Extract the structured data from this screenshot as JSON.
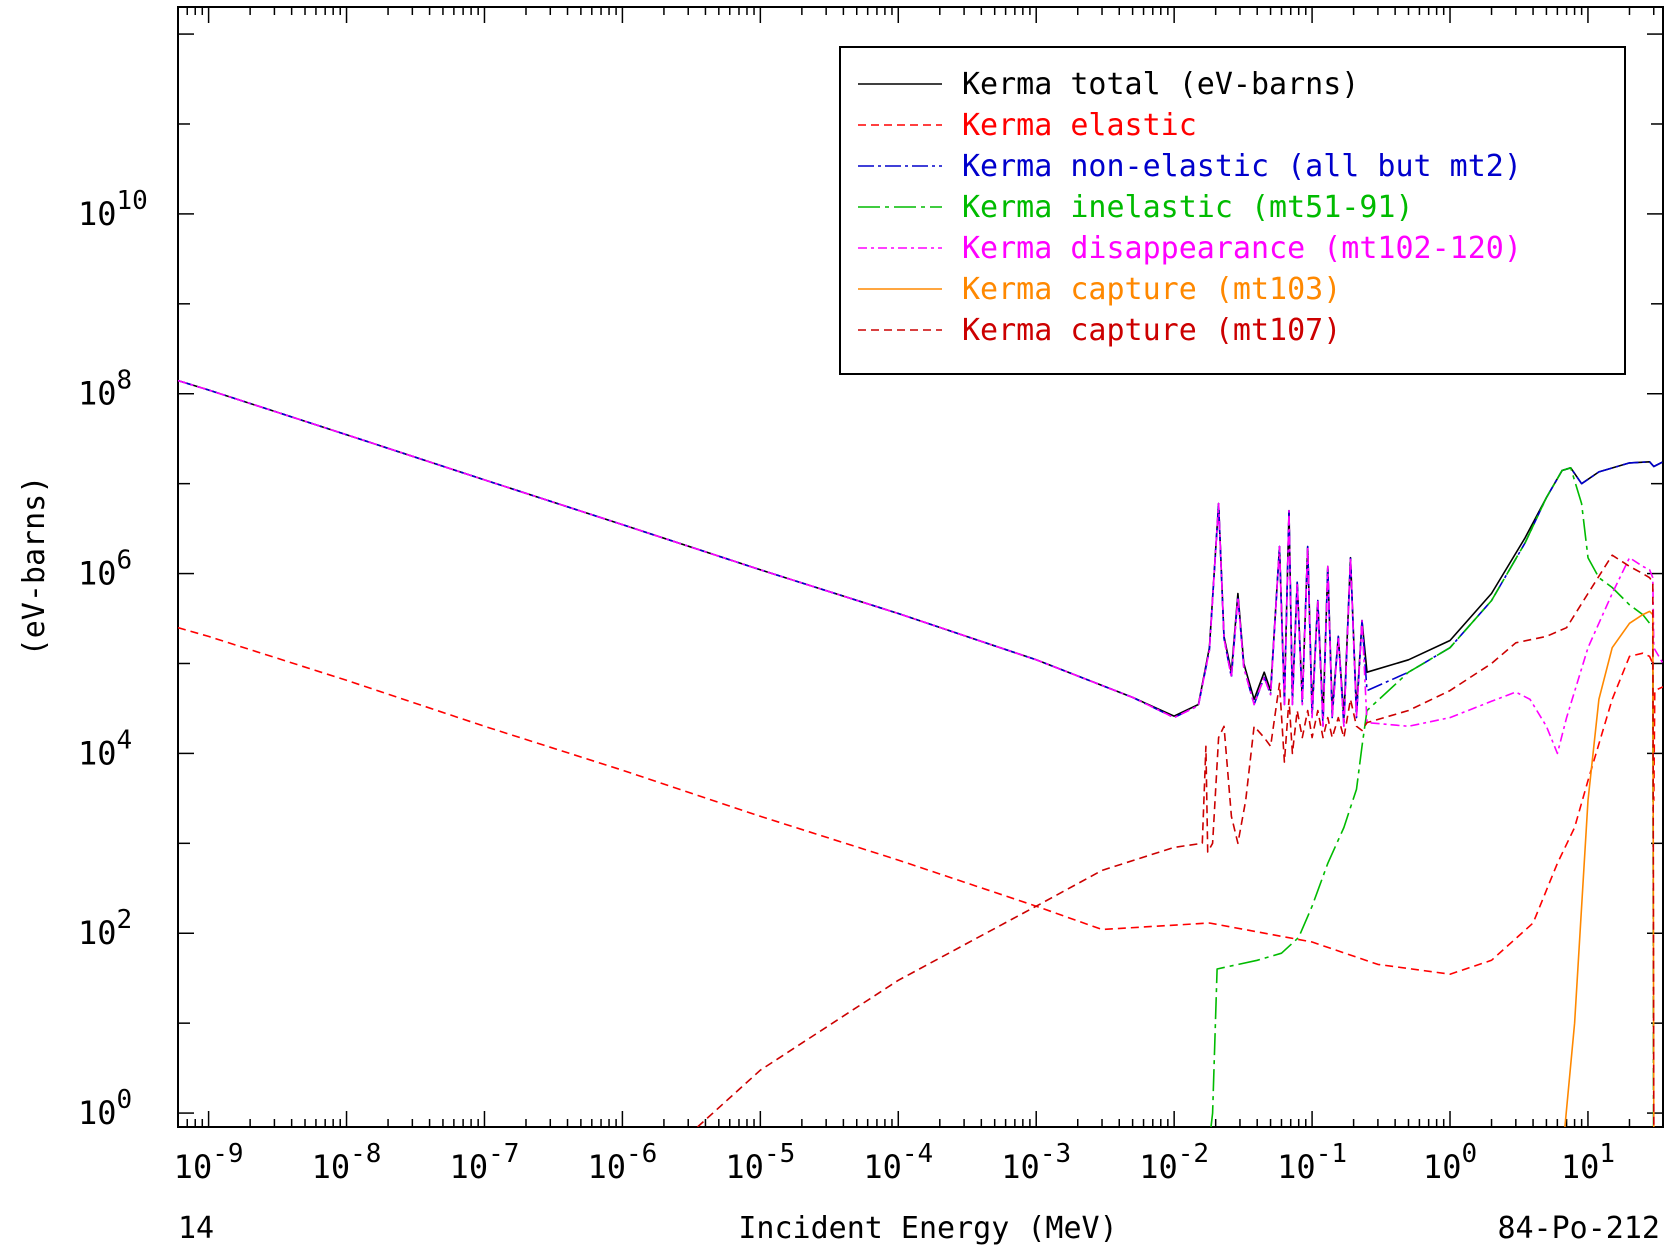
{
  "chart_data": {
    "type": "line",
    "xscale": "log",
    "yscale": "log",
    "xlim": [
      6e-10,
      35
    ],
    "ylim": [
      0.7,
      2000000000000.0
    ],
    "xlabel": "Incident Energy (MeV)",
    "ylabel": "(eV-barns)",
    "footer_left": "14",
    "footer_right": "84-Po-212",
    "legend_position": "top-right",
    "x_ticks": [
      {
        "base": "10",
        "exp": "-9",
        "value": 1e-09
      },
      {
        "base": "10",
        "exp": "-8",
        "value": 1e-08
      },
      {
        "base": "10",
        "exp": "-7",
        "value": 1e-07
      },
      {
        "base": "10",
        "exp": "-6",
        "value": 1e-06
      },
      {
        "base": "10",
        "exp": "-5",
        "value": 1e-05
      },
      {
        "base": "10",
        "exp": "-4",
        "value": 0.0001
      },
      {
        "base": "10",
        "exp": "-3",
        "value": 0.001
      },
      {
        "base": "10",
        "exp": "-2",
        "value": 0.01
      },
      {
        "base": "10",
        "exp": "-1",
        "value": 0.1
      },
      {
        "base": "10",
        "exp": "0",
        "value": 1
      },
      {
        "base": "10",
        "exp": "1",
        "value": 10
      }
    ],
    "y_ticks": [
      {
        "base": "10",
        "exp": "0",
        "value": 1
      },
      {
        "base": "10",
        "exp": "2",
        "value": 100
      },
      {
        "base": "10",
        "exp": "4",
        "value": 10000
      },
      {
        "base": "10",
        "exp": "6",
        "value": 1000000
      },
      {
        "base": "10",
        "exp": "8",
        "value": 100000000
      },
      {
        "base": "10",
        "exp": "10",
        "value": 10000000000
      }
    ],
    "series": [
      {
        "name": "Kerma total  (eV-barns)",
        "color": "#000000",
        "dash": "solid",
        "points": [
          [
            6e-10,
            140000000.0
          ],
          [
            1e-09,
            110000000.0
          ],
          [
            1e-08,
            35000000.0
          ],
          [
            1e-07,
            11000000.0
          ],
          [
            1e-06,
            3500000.0
          ],
          [
            1e-05,
            1100000.0
          ],
          [
            0.0001,
            360000.0
          ],
          [
            0.001,
            110000.0
          ],
          [
            0.005,
            42000.0
          ],
          [
            0.01,
            26000.0
          ],
          [
            0.015,
            35000.0
          ],
          [
            0.018,
            150000.0
          ],
          [
            0.021,
            6000000.0
          ],
          [
            0.023,
            200000.0
          ],
          [
            0.026,
            80000.0
          ],
          [
            0.029,
            600000.0
          ],
          [
            0.032,
            100000.0
          ],
          [
            0.038,
            40000.0
          ],
          [
            0.045,
            80000.0
          ],
          [
            0.05,
            50000.0
          ],
          [
            0.058,
            2000000.0
          ],
          [
            0.063,
            40000.0
          ],
          [
            0.068,
            5000000.0
          ],
          [
            0.072,
            40000.0
          ],
          [
            0.078,
            800000.0
          ],
          [
            0.085,
            40000.0
          ],
          [
            0.093,
            2000000.0
          ],
          [
            0.1,
            30000.0
          ],
          [
            0.11,
            500000.0
          ],
          [
            0.12,
            25000.0
          ],
          [
            0.13,
            1200000.0
          ],
          [
            0.14,
            30000.0
          ],
          [
            0.155,
            200000.0
          ],
          [
            0.17,
            25000.0
          ],
          [
            0.19,
            1500000.0
          ],
          [
            0.21,
            30000.0
          ],
          [
            0.23,
            300000.0
          ],
          [
            0.25,
            80000.0
          ],
          [
            0.5,
            110000.0
          ],
          [
            1,
            180000.0
          ],
          [
            2,
            600000.0
          ],
          [
            3.5,
            2500000.0
          ],
          [
            5,
            7000000.0
          ],
          [
            6.5,
            14000000.0
          ],
          [
            7.5,
            15000000.0
          ],
          [
            9,
            10000000.0
          ],
          [
            12,
            13500000.0
          ],
          [
            20,
            17000000.0
          ],
          [
            28,
            17500000.0
          ],
          [
            30,
            15500000.0
          ],
          [
            35,
            17500000.0
          ]
        ]
      },
      {
        "name": "Kerma elastic",
        "color": "#ff0000",
        "dash": "8,5",
        "points": [
          [
            6e-10,
            250000.0
          ],
          [
            1e-09,
            200000.0
          ],
          [
            1e-08,
            65000.0
          ],
          [
            1e-07,
            20000.0
          ],
          [
            1e-06,
            6500.0
          ],
          [
            1e-05,
            2000.0
          ],
          [
            0.0001,
            650
          ],
          [
            0.001,
            200
          ],
          [
            0.003,
            110
          ],
          [
            0.018,
            130
          ],
          [
            0.1,
            80
          ],
          [
            0.3,
            45
          ],
          [
            1,
            35
          ],
          [
            2,
            50
          ],
          [
            4,
            130
          ],
          [
            5,
            300
          ],
          [
            6,
            600
          ],
          [
            8,
            1500.0
          ],
          [
            10,
            5000.0
          ],
          [
            15,
            40000.0
          ],
          [
            20,
            120000.0
          ],
          [
            25,
            130000.0
          ],
          [
            28,
            120000.0
          ],
          [
            29.5,
            100000.0
          ],
          [
            30,
            3000.0
          ],
          [
            30.5,
            50000.0
          ],
          [
            35,
            55000.0
          ]
        ]
      },
      {
        "name": "Kerma non-elastic (all but mt2)",
        "color": "#0000cc",
        "dash": "16,4,3,4",
        "points": [
          [
            6e-10,
            140000000.0
          ],
          [
            1e-09,
            110000000.0
          ],
          [
            1e-08,
            35000000.0
          ],
          [
            1e-07,
            11000000.0
          ],
          [
            1e-06,
            3500000.0
          ],
          [
            1e-05,
            1100000.0
          ],
          [
            0.0001,
            360000.0
          ],
          [
            0.001,
            110000.0
          ],
          [
            0.005,
            42000.0
          ],
          [
            0.01,
            25000.0
          ],
          [
            0.015,
            34000.0
          ],
          [
            0.018,
            140000.0
          ],
          [
            0.021,
            6000000.0
          ],
          [
            0.023,
            190000.0
          ],
          [
            0.026,
            70000.0
          ],
          [
            0.029,
            550000.0
          ],
          [
            0.032,
            90000.0
          ],
          [
            0.038,
            35000.0
          ],
          [
            0.045,
            70000.0
          ],
          [
            0.05,
            45000.0
          ],
          [
            0.058,
            2000000.0
          ],
          [
            0.063,
            35000.0
          ],
          [
            0.068,
            5000000.0
          ],
          [
            0.072,
            35000.0
          ],
          [
            0.078,
            800000.0
          ],
          [
            0.085,
            35000.0
          ],
          [
            0.093,
            2000000.0
          ],
          [
            0.1,
            25000.0
          ],
          [
            0.11,
            500000.0
          ],
          [
            0.12,
            20000.0
          ],
          [
            0.13,
            1200000.0
          ],
          [
            0.14,
            25000.0
          ],
          [
            0.155,
            200000.0
          ],
          [
            0.17,
            20000.0
          ],
          [
            0.19,
            1500000.0
          ],
          [
            0.21,
            25000.0
          ],
          [
            0.23,
            300000.0
          ],
          [
            0.25,
            50000.0
          ],
          [
            0.5,
            80000.0
          ],
          [
            1,
            150000.0
          ],
          [
            2,
            500000.0
          ],
          [
            3.5,
            2200000.0
          ],
          [
            5,
            7000000.0
          ],
          [
            6.5,
            14000000.0
          ],
          [
            7.5,
            15000000.0
          ],
          [
            9,
            10000000.0
          ],
          [
            12,
            13500000.0
          ],
          [
            20,
            17000000.0
          ],
          [
            28,
            17500000.0
          ],
          [
            30,
            15500000.0
          ],
          [
            35,
            17500000.0
          ]
        ]
      },
      {
        "name": "Kerma inelastic (mt51-91)",
        "color": "#00bb00",
        "dash": "22,5,4,5",
        "points": [
          [
            0.0185,
            0.7
          ],
          [
            0.019,
            1
          ],
          [
            0.0205,
            40
          ],
          [
            0.04,
            50
          ],
          [
            0.06,
            60
          ],
          [
            0.08,
            90
          ],
          [
            0.1,
            200
          ],
          [
            0.13,
            600
          ],
          [
            0.17,
            1500.0
          ],
          [
            0.21,
            4000.0
          ],
          [
            0.23,
            12000.0
          ],
          [
            0.25,
            30000.0
          ],
          [
            0.5,
            80000.0
          ],
          [
            1,
            150000.0
          ],
          [
            2,
            500000.0
          ],
          [
            3.5,
            2200000.0
          ],
          [
            5,
            7000000.0
          ],
          [
            6.5,
            14000000.0
          ],
          [
            7.5,
            15000000.0
          ],
          [
            9,
            6000000.0
          ],
          [
            10,
            1500000.0
          ],
          [
            12,
            900000.0
          ],
          [
            15,
            700000.0
          ],
          [
            20,
            450000.0
          ],
          [
            25,
            350000.0
          ],
          [
            28,
            280000.0
          ],
          [
            29.5,
            250000.0
          ],
          [
            30,
            0.01
          ]
        ]
      },
      {
        "name": "Kerma disappearance (mt102-120)",
        "color": "#ff00ff",
        "dash": "9,4,3,4",
        "points": [
          [
            6e-10,
            140000000.0
          ],
          [
            1e-09,
            110000000.0
          ],
          [
            1e-08,
            35000000.0
          ],
          [
            1e-07,
            11000000.0
          ],
          [
            1e-06,
            3500000.0
          ],
          [
            1e-05,
            1100000.0
          ],
          [
            0.0001,
            360000.0
          ],
          [
            0.001,
            110000.0
          ],
          [
            0.005,
            42000.0
          ],
          [
            0.01,
            25000.0
          ],
          [
            0.015,
            34000.0
          ],
          [
            0.018,
            140000.0
          ],
          [
            0.021,
            6000000.0
          ],
          [
            0.023,
            190000.0
          ],
          [
            0.026,
            70000.0
          ],
          [
            0.029,
            550000.0
          ],
          [
            0.032,
            90000.0
          ],
          [
            0.038,
            35000.0
          ],
          [
            0.045,
            70000.0
          ],
          [
            0.05,
            45000.0
          ],
          [
            0.058,
            2000000.0
          ],
          [
            0.063,
            35000.0
          ],
          [
            0.068,
            5000000.0
          ],
          [
            0.072,
            35000.0
          ],
          [
            0.078,
            800000.0
          ],
          [
            0.085,
            35000.0
          ],
          [
            0.093,
            2000000.0
          ],
          [
            0.1,
            25000.0
          ],
          [
            0.11,
            500000.0
          ],
          [
            0.12,
            20000.0
          ],
          [
            0.13,
            1200000.0
          ],
          [
            0.14,
            25000.0
          ],
          [
            0.155,
            200000.0
          ],
          [
            0.17,
            20000.0
          ],
          [
            0.19,
            1500000.0
          ],
          [
            0.21,
            25000.0
          ],
          [
            0.23,
            300000.0
          ],
          [
            0.25,
            22000.0
          ],
          [
            0.5,
            20000.0
          ],
          [
            1,
            25000.0
          ],
          [
            2,
            38000.0
          ],
          [
            3,
            48000.0
          ],
          [
            3.8,
            40000.0
          ],
          [
            5,
            20000.0
          ],
          [
            6,
            10000.0
          ],
          [
            7,
            25000.0
          ],
          [
            10,
            150000.0
          ],
          [
            15,
            600000.0
          ],
          [
            20,
            1500000.0
          ],
          [
            25,
            1200000.0
          ],
          [
            28,
            1100000.0
          ],
          [
            29.5,
            900000.0
          ],
          [
            30,
            150000.0
          ],
          [
            35,
            100000.0
          ]
        ]
      },
      {
        "name": "Kerma capture (mt103)",
        "color": "#ff8800",
        "dash": "solid",
        "points": [
          [
            6.8,
            0.7
          ],
          [
            8,
            10
          ],
          [
            10,
            3000.0
          ],
          [
            12,
            40000.0
          ],
          [
            15,
            150000.0
          ],
          [
            20,
            280000.0
          ],
          [
            25,
            350000.0
          ],
          [
            28,
            380000.0
          ],
          [
            29.5,
            350000.0
          ],
          [
            30,
            0.7
          ]
        ]
      },
      {
        "name": "Kerma capture (mt107)",
        "color": "#cc0000",
        "dash": "8,5",
        "points": [
          [
            3.5e-06,
            0.7
          ],
          [
            1e-05,
            3
          ],
          [
            0.0001,
            30
          ],
          [
            0.001,
            200
          ],
          [
            0.003,
            500
          ],
          [
            0.01,
            900
          ],
          [
            0.016,
            1000.0
          ],
          [
            0.017,
            12000.0
          ],
          [
            0.0175,
            800
          ],
          [
            0.019,
            1000.0
          ],
          [
            0.021,
            15000.0
          ],
          [
            0.023,
            20000.0
          ],
          [
            0.026,
            2000.0
          ],
          [
            0.029,
            1000.0
          ],
          [
            0.033,
            3000.0
          ],
          [
            0.038,
            20000.0
          ],
          [
            0.045,
            15000.0
          ],
          [
            0.05,
            12000.0
          ],
          [
            0.058,
            60000.0
          ],
          [
            0.063,
            8000.0
          ],
          [
            0.068,
            40000.0
          ],
          [
            0.072,
            10000.0
          ],
          [
            0.078,
            30000.0
          ],
          [
            0.085,
            15000.0
          ],
          [
            0.093,
            30000.0
          ],
          [
            0.1,
            15000.0
          ],
          [
            0.11,
            30000.0
          ],
          [
            0.12,
            15000.0
          ],
          [
            0.13,
            25000.0
          ],
          [
            0.14,
            15000.0
          ],
          [
            0.155,
            25000.0
          ],
          [
            0.17,
            15000.0
          ],
          [
            0.19,
            40000.0
          ],
          [
            0.21,
            20000.0
          ],
          [
            0.23,
            18000.0
          ],
          [
            0.25,
            22000.0
          ],
          [
            0.5,
            30000.0
          ],
          [
            1,
            50000.0
          ],
          [
            2,
            100000.0
          ],
          [
            3,
            170000.0
          ],
          [
            5,
            200000.0
          ],
          [
            7,
            250000.0
          ],
          [
            10,
            600000.0
          ],
          [
            15,
            1600000.0
          ],
          [
            20,
            1200000.0
          ],
          [
            25,
            1000000.0
          ],
          [
            28,
            900000.0
          ],
          [
            29.5,
            800000.0
          ],
          [
            30,
            0.7
          ]
        ]
      }
    ]
  }
}
